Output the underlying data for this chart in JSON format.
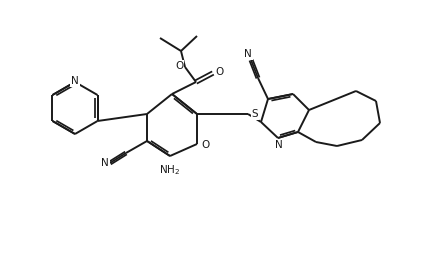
{
  "bg_color": "#ffffff",
  "line_color": "#1a1a1a",
  "line_width": 1.4,
  "figsize": [
    4.46,
    2.56
  ],
  "dpi": 100,
  "xlim": [
    0,
    446
  ],
  "ylim": [
    0,
    256
  ]
}
